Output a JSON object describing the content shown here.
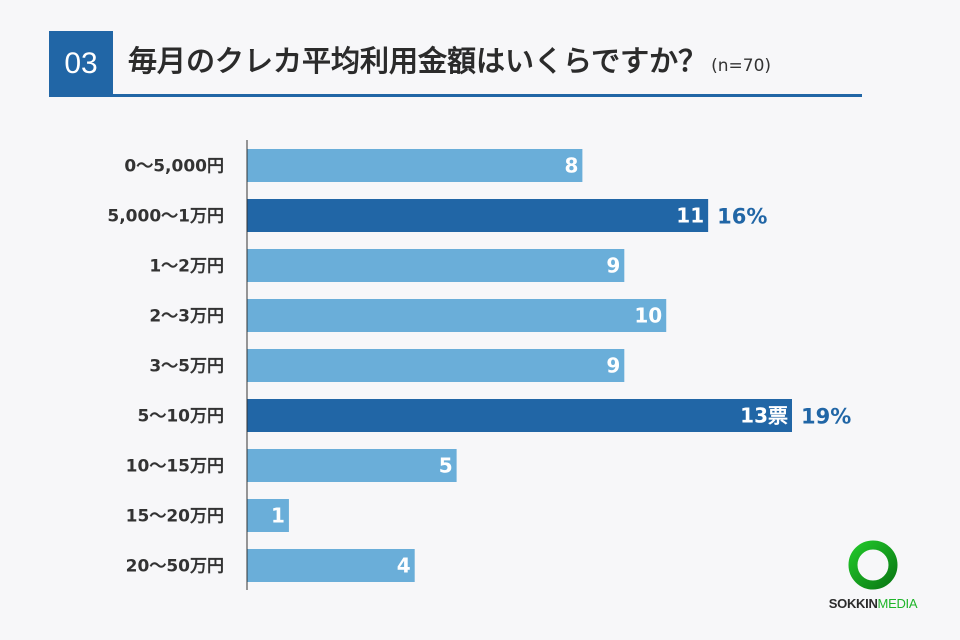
{
  "header": {
    "number": "03",
    "title": "毎月のクレカ平均利用金額はいくらですか？",
    "sample": "(n=70)"
  },
  "colors": {
    "bar": "#6aaed9",
    "highlight": "#2166a6",
    "label": "#333333"
  },
  "chart_data": {
    "type": "bar",
    "orientation": "horizontal",
    "title": "毎月のクレカ平均利用金額はいくらですか？",
    "categories": [
      "0〜5,000円",
      "5,000〜1万円",
      "1〜2万円",
      "2〜3万円",
      "3〜5万円",
      "5〜10万円",
      "10〜15万円",
      "15〜20万円",
      "20〜50万円"
    ],
    "values": [
      8,
      11,
      9,
      10,
      9,
      13,
      5,
      1,
      4
    ],
    "value_labels": [
      "8",
      "11",
      "9",
      "10",
      "9",
      "13票",
      "5",
      "1",
      "4"
    ],
    "highlighted": [
      false,
      true,
      false,
      false,
      false,
      true,
      false,
      false,
      false
    ],
    "percent_labels": [
      "",
      "16%",
      "",
      "",
      "",
      "19%",
      "",
      "",
      ""
    ],
    "xlim": [
      0,
      13
    ]
  },
  "logo": {
    "brand_dark": "SOKKIN",
    "brand_green": "MEDIA"
  }
}
